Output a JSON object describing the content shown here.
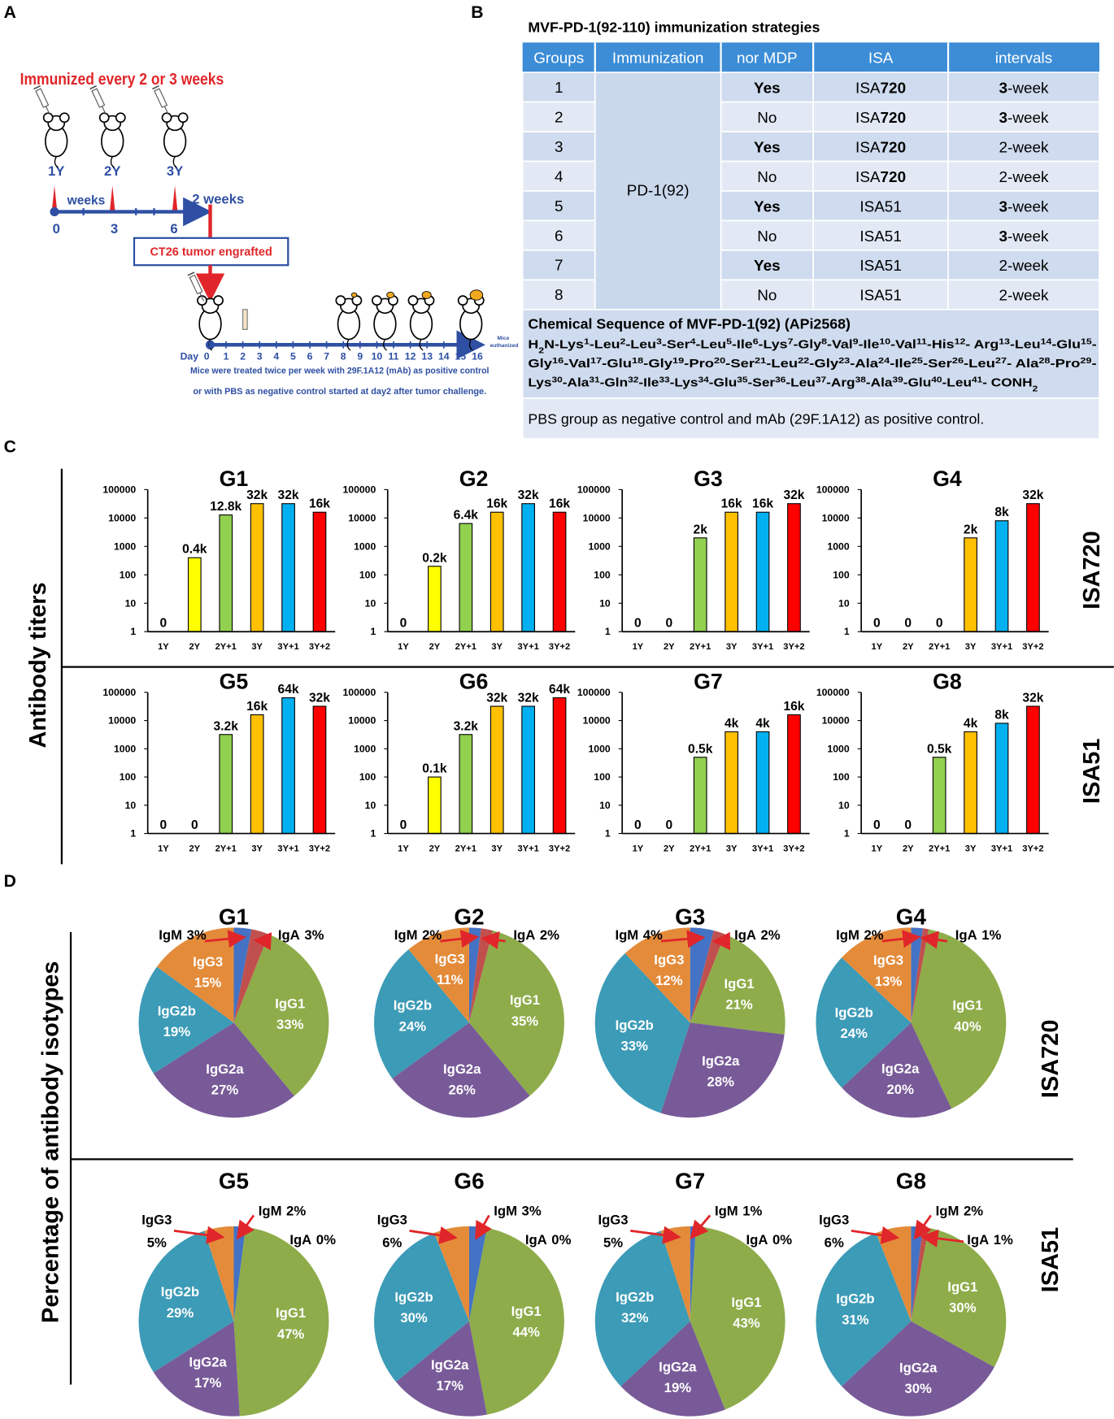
{
  "panel_labels": [
    "A",
    "B",
    "C",
    "D"
  ],
  "schedule": {
    "title": "Immunized every 2 or 3 weeks",
    "doses": [
      "1Y",
      "2Y",
      "3Y"
    ],
    "weeks_label": "weeks",
    "weeks": [
      "0",
      "3",
      "6"
    ],
    "end_label": "2 weeks",
    "tumor": "CT26 tumor engrafted",
    "day_label": "Day",
    "days": [
      "0",
      "1",
      "2",
      "3",
      "4",
      "5",
      "6",
      "7",
      "8",
      "9",
      "10",
      "11",
      "12",
      "13",
      "14",
      "15",
      "16"
    ],
    "euthanized": [
      "Mice",
      "euthanized"
    ],
    "caption": [
      "Mice were treated twice per week with 29F.1A12 (mAb) as positive control",
      "or with PBS as negative control started at day2 after tumor challenge."
    ]
  },
  "table": {
    "title": "MVF-PD-1(92-110) immunization strategies",
    "header": [
      "Groups",
      "Immunization",
      "nor MDP",
      "ISA",
      "intervals"
    ],
    "immunization": "PD-1(92)",
    "rows": [
      {
        "group": "1",
        "mdp": [
          {
            "text": "Yes",
            "bold": true
          }
        ],
        "isa": [
          {
            "text": "ISA"
          },
          {
            "text": "720",
            "bold": true
          }
        ],
        "interval": [
          {
            "text": "3",
            "bold": true
          },
          {
            "text": "-week"
          }
        ]
      },
      {
        "group": "2",
        "mdp": [
          {
            "text": "No"
          }
        ],
        "isa": [
          {
            "text": "ISA"
          },
          {
            "text": "720",
            "bold": true
          }
        ],
        "interval": [
          {
            "text": "3",
            "bold": true
          },
          {
            "text": "-week"
          }
        ]
      },
      {
        "group": "3",
        "mdp": [
          {
            "text": "Yes",
            "bold": true
          }
        ],
        "isa": [
          {
            "text": "ISA"
          },
          {
            "text": "720",
            "bold": true
          }
        ],
        "interval": [
          {
            "text": "2-week"
          }
        ]
      },
      {
        "group": "4",
        "mdp": [
          {
            "text": "No"
          }
        ],
        "isa": [
          {
            "text": "ISA"
          },
          {
            "text": "720",
            "bold": true
          }
        ],
        "interval": [
          {
            "text": "2-week"
          }
        ]
      },
      {
        "group": "5",
        "mdp": [
          {
            "text": "Yes",
            "bold": true
          }
        ],
        "isa": [
          {
            "text": "ISA51"
          }
        ],
        "interval": [
          {
            "text": "3",
            "bold": true
          },
          {
            "text": "-week"
          }
        ]
      },
      {
        "group": "6",
        "mdp": [
          {
            "text": "No"
          }
        ],
        "isa": [
          {
            "text": "ISA51"
          }
        ],
        "interval": [
          {
            "text": "3",
            "bold": true
          },
          {
            "text": "-week"
          }
        ]
      },
      {
        "group": "7",
        "mdp": [
          {
            "text": "Yes",
            "bold": true
          }
        ],
        "isa": [
          {
            "text": "ISA51"
          }
        ],
        "interval": [
          {
            "text": "2-week"
          }
        ]
      },
      {
        "group": "8",
        "mdp": [
          {
            "text": "No"
          }
        ],
        "isa": [
          {
            "text": "ISA51"
          }
        ],
        "interval": [
          {
            "text": "2-week"
          }
        ]
      }
    ],
    "sequence_title": "Chemical Sequence of MVF-PD-1(92) (APi2568)",
    "sequence": [
      [
        "H",
        {
          "sub": "2"
        },
        "N-Lys",
        {
          "sup": "1"
        },
        "-Leu",
        {
          "sup": "2"
        },
        "-Leu",
        {
          "sup": "3"
        },
        "-Ser",
        {
          "sup": "4"
        },
        "-Leu",
        {
          "sup": "5"
        },
        "-Ile",
        {
          "sup": "6"
        },
        "-Lys",
        {
          "sup": "7"
        },
        "-Gly",
        {
          "sup": "8"
        },
        "-Val",
        {
          "sup": "9"
        },
        "-Ile",
        {
          "sup": "10"
        },
        "-Val",
        {
          "sup": "11"
        },
        "-His",
        {
          "sup": "12"
        },
        "- Arg",
        {
          "sup": "13"
        },
        "-Leu",
        {
          "sup": "14"
        },
        "-Glu",
        {
          "sup": "15"
        },
        "-"
      ],
      [
        "Gly",
        {
          "sup": "16"
        },
        "-Val",
        {
          "sup": "17"
        },
        "-Glu",
        {
          "sup": "18"
        },
        "-Gly",
        {
          "sup": "19"
        },
        "-Pro",
        {
          "sup": "20"
        },
        "-Ser",
        {
          "sup": "21"
        },
        "-Leu",
        {
          "sup": "22"
        },
        "-Gly",
        {
          "sup": "23"
        },
        "-Ala",
        {
          "sup": "24"
        },
        "-Ile",
        {
          "sup": "25"
        },
        "-Ser",
        {
          "sup": "26"
        },
        "-Leu",
        {
          "sup": "27"
        },
        "- Ala",
        {
          "sup": "28"
        },
        "-Pro",
        {
          "sup": "29"
        },
        "-"
      ],
      [
        "Lys",
        {
          "sup": "30"
        },
        "-Ala",
        {
          "sup": "31"
        },
        "-Gln",
        {
          "sup": "32"
        },
        "-Ile",
        {
          "sup": "33"
        },
        "-Lys",
        {
          "sup": "34"
        },
        "-Glu",
        {
          "sup": "35"
        },
        "-Ser",
        {
          "sup": "36"
        },
        "-Leu",
        {
          "sup": "37"
        },
        "-Arg",
        {
          "sup": "38"
        },
        "-Ala",
        {
          "sup": "39"
        },
        "-Glu",
        {
          "sup": "40"
        },
        "-Leu",
        {
          "sup": "41"
        },
        "- CONH",
        {
          "sub": "2"
        }
      ]
    ],
    "footnote": "PBS group as negative control and mAb (29F.1A12) as positive control."
  },
  "panel_c": {
    "y_label": "Antibody titers",
    "row_labels": [
      "ISA720",
      "ISA51"
    ]
  },
  "panel_d": {
    "y_label": "Percentage of antibody isotypes",
    "row_labels": [
      "ISA720",
      "ISA51"
    ]
  },
  "chart_data": [
    {
      "type": "bar",
      "title": "G1",
      "categories": [
        "1Y",
        "2Y",
        "2Y+1",
        "3Y",
        "3Y+1",
        "3Y+2"
      ],
      "values": [
        0,
        400,
        12800,
        32000,
        32000,
        16000
      ],
      "value_labels": [
        "0",
        "0.4k",
        "12.8k",
        "32k",
        "32k",
        "16k"
      ],
      "colors": [
        "#ffffff",
        "#ffff00",
        "#92d050",
        "#ffc000",
        "#00b0f0",
        "#ff0000"
      ],
      "ylim": [
        1,
        100000
      ],
      "yticks": [
        1,
        10,
        100,
        1000,
        10000,
        100000
      ],
      "log_scale": true
    },
    {
      "type": "bar",
      "title": "G2",
      "categories": [
        "1Y",
        "2Y",
        "2Y+1",
        "3Y",
        "3Y+1",
        "3Y+2"
      ],
      "values": [
        0,
        200,
        6400,
        16000,
        32000,
        16000
      ],
      "value_labels": [
        "0",
        "0.2k",
        "6.4k",
        "16k",
        "32k",
        "16k"
      ],
      "colors": [
        "#ffffff",
        "#ffff00",
        "#92d050",
        "#ffc000",
        "#00b0f0",
        "#ff0000"
      ],
      "ylim": [
        1,
        100000
      ],
      "yticks": [
        1,
        10,
        100,
        1000,
        10000,
        100000
      ],
      "log_scale": true
    },
    {
      "type": "bar",
      "title": "G3",
      "categories": [
        "1Y",
        "2Y",
        "2Y+1",
        "3Y",
        "3Y+1",
        "3Y+2"
      ],
      "values": [
        0,
        0,
        2000,
        16000,
        16000,
        32000
      ],
      "value_labels": [
        "0",
        "0",
        "2k",
        "16k",
        "16k",
        "32k"
      ],
      "colors": [
        "#ffffff",
        "#ffff00",
        "#92d050",
        "#ffc000",
        "#00b0f0",
        "#ff0000"
      ],
      "ylim": [
        1,
        100000
      ],
      "yticks": [
        1,
        10,
        100,
        1000,
        10000,
        100000
      ],
      "log_scale": true
    },
    {
      "type": "bar",
      "title": "G4",
      "categories": [
        "1Y",
        "2Y",
        "2Y+1",
        "3Y",
        "3Y+1",
        "3Y+2"
      ],
      "values": [
        0,
        0,
        0,
        2000,
        8000,
        32000
      ],
      "value_labels": [
        "0",
        "0",
        "0",
        "2k",
        "8k",
        "32k"
      ],
      "colors": [
        "#ffffff",
        "#ffff00",
        "#92d050",
        "#ffc000",
        "#00b0f0",
        "#ff0000"
      ],
      "ylim": [
        1,
        100000
      ],
      "yticks": [
        1,
        10,
        100,
        1000,
        10000,
        100000
      ],
      "log_scale": true
    },
    {
      "type": "bar",
      "title": "G5",
      "categories": [
        "1Y",
        "2Y",
        "2Y+1",
        "3Y",
        "3Y+1",
        "3Y+2"
      ],
      "values": [
        0,
        0,
        3200,
        16000,
        64000,
        32000
      ],
      "value_labels": [
        "0",
        "0",
        "3.2k",
        "16k",
        "64k",
        "32k"
      ],
      "colors": [
        "#ffffff",
        "#ffff00",
        "#92d050",
        "#ffc000",
        "#00b0f0",
        "#ff0000"
      ],
      "ylim": [
        1,
        100000
      ],
      "yticks": [
        1,
        10,
        100,
        1000,
        10000,
        100000
      ],
      "log_scale": true
    },
    {
      "type": "bar",
      "title": "G6",
      "categories": [
        "1Y",
        "2Y",
        "2Y+1",
        "3Y",
        "3Y+1",
        "3Y+2"
      ],
      "values": [
        0,
        100,
        3200,
        32000,
        32000,
        64000
      ],
      "value_labels": [
        "0",
        "0.1k",
        "3.2k",
        "32k",
        "32k",
        "64k"
      ],
      "colors": [
        "#ffffff",
        "#ffff00",
        "#92d050",
        "#ffc000",
        "#00b0f0",
        "#ff0000"
      ],
      "ylim": [
        1,
        100000
      ],
      "yticks": [
        1,
        10,
        100,
        1000,
        10000,
        100000
      ],
      "log_scale": true
    },
    {
      "type": "bar",
      "title": "G7",
      "categories": [
        "1Y",
        "2Y",
        "2Y+1",
        "3Y",
        "3Y+1",
        "3Y+2"
      ],
      "values": [
        0,
        0,
        500,
        4000,
        4000,
        16000
      ],
      "value_labels": [
        "0",
        "0",
        "0.5k",
        "4k",
        "4k",
        "16k"
      ],
      "colors": [
        "#ffffff",
        "#ffff00",
        "#92d050",
        "#ffc000",
        "#00b0f0",
        "#ff0000"
      ],
      "ylim": [
        1,
        100000
      ],
      "yticks": [
        1,
        10,
        100,
        1000,
        10000,
        100000
      ],
      "log_scale": true
    },
    {
      "type": "bar",
      "title": "G8",
      "categories": [
        "1Y",
        "2Y",
        "2Y+1",
        "3Y",
        "3Y+1",
        "3Y+2"
      ],
      "values": [
        0,
        0,
        500,
        4000,
        8000,
        32000
      ],
      "value_labels": [
        "0",
        "0",
        "0.5k",
        "4k",
        "8k",
        "32k"
      ],
      "colors": [
        "#ffffff",
        "#ffff00",
        "#92d050",
        "#ffc000",
        "#00b0f0",
        "#ff0000"
      ],
      "ylim": [
        1,
        100000
      ],
      "yticks": [
        1,
        10,
        100,
        1000,
        10000,
        100000
      ],
      "log_scale": true
    },
    {
      "type": "pie",
      "title": "G1",
      "categories": [
        "IgM",
        "IgA",
        "IgG1",
        "IgG2a",
        "IgG2b",
        "IgG3"
      ],
      "values": [
        3,
        3,
        33,
        27,
        19,
        15
      ],
      "value_labels": [
        "3%",
        "3%",
        "33%",
        "27%",
        "19%",
        "15%"
      ],
      "colors": [
        "#4472c4",
        "#c0504d",
        "#8eac4a",
        "#785a98",
        "#3c9bb7",
        "#e48b3a"
      ]
    },
    {
      "type": "pie",
      "title": "G2",
      "categories": [
        "IgM",
        "IgA",
        "IgG1",
        "IgG2a",
        "IgG2b",
        "IgG3"
      ],
      "values": [
        2,
        2,
        35,
        26,
        24,
        11
      ],
      "value_labels": [
        "2%",
        "2%",
        "35%",
        "26%",
        "24%",
        "11%"
      ],
      "colors": [
        "#4472c4",
        "#c0504d",
        "#8eac4a",
        "#785a98",
        "#3c9bb7",
        "#e48b3a"
      ]
    },
    {
      "type": "pie",
      "title": "G3",
      "categories": [
        "IgM",
        "IgA",
        "IgG1",
        "IgG2a",
        "IgG2b",
        "IgG3"
      ],
      "values": [
        4,
        2,
        21,
        28,
        33,
        12
      ],
      "value_labels": [
        "4%",
        "2%",
        "21%",
        "28%",
        "33%",
        "12%"
      ],
      "colors": [
        "#4472c4",
        "#c0504d",
        "#8eac4a",
        "#785a98",
        "#3c9bb7",
        "#e48b3a"
      ]
    },
    {
      "type": "pie",
      "title": "G4",
      "categories": [
        "IgM",
        "IgA",
        "IgG1",
        "IgG2a",
        "IgG2b",
        "IgG3"
      ],
      "values": [
        2,
        1,
        40,
        20,
        24,
        13
      ],
      "value_labels": [
        "2%",
        "1%",
        "40%",
        "20%",
        "24%",
        "13%"
      ],
      "colors": [
        "#4472c4",
        "#c0504d",
        "#8eac4a",
        "#785a98",
        "#3c9bb7",
        "#e48b3a"
      ]
    },
    {
      "type": "pie",
      "title": "G5",
      "categories": [
        "IgM",
        "IgA",
        "IgG1",
        "IgG2a",
        "IgG2b",
        "IgG3"
      ],
      "values": [
        2,
        0,
        47,
        17,
        29,
        5
      ],
      "value_labels": [
        "2%",
        "0%",
        "47%",
        "17%",
        "29%",
        "5%"
      ],
      "colors": [
        "#4472c4",
        "#c0504d",
        "#8eac4a",
        "#785a98",
        "#3c9bb7",
        "#e48b3a"
      ]
    },
    {
      "type": "pie",
      "title": "G6",
      "categories": [
        "IgM",
        "IgA",
        "IgG1",
        "IgG2a",
        "IgG2b",
        "IgG3"
      ],
      "values": [
        3,
        0,
        44,
        17,
        30,
        6
      ],
      "value_labels": [
        "3%",
        "0%",
        "44%",
        "17%",
        "30%",
        "6%"
      ],
      "colors": [
        "#4472c4",
        "#c0504d",
        "#8eac4a",
        "#785a98",
        "#3c9bb7",
        "#e48b3a"
      ]
    },
    {
      "type": "pie",
      "title": "G7",
      "categories": [
        "IgM",
        "IgA",
        "IgG1",
        "IgG2a",
        "IgG2b",
        "IgG3"
      ],
      "values": [
        1,
        0,
        43,
        19,
        32,
        5
      ],
      "value_labels": [
        "1%",
        "0%",
        "43%",
        "19%",
        "32%",
        "5%"
      ],
      "colors": [
        "#4472c4",
        "#c0504d",
        "#8eac4a",
        "#785a98",
        "#3c9bb7",
        "#e48b3a"
      ]
    },
    {
      "type": "pie",
      "title": "G8",
      "categories": [
        "IgM",
        "IgA",
        "IgG1",
        "IgG2a",
        "IgG2b",
        "IgG3"
      ],
      "values": [
        2,
        1,
        30,
        30,
        31,
        6
      ],
      "value_labels": [
        "2%",
        "1%",
        "30%",
        "30%",
        "31%",
        "6%"
      ],
      "colors": [
        "#4472c4",
        "#c0504d",
        "#8eac4a",
        "#785a98",
        "#3c9bb7",
        "#e48b3a"
      ]
    }
  ]
}
